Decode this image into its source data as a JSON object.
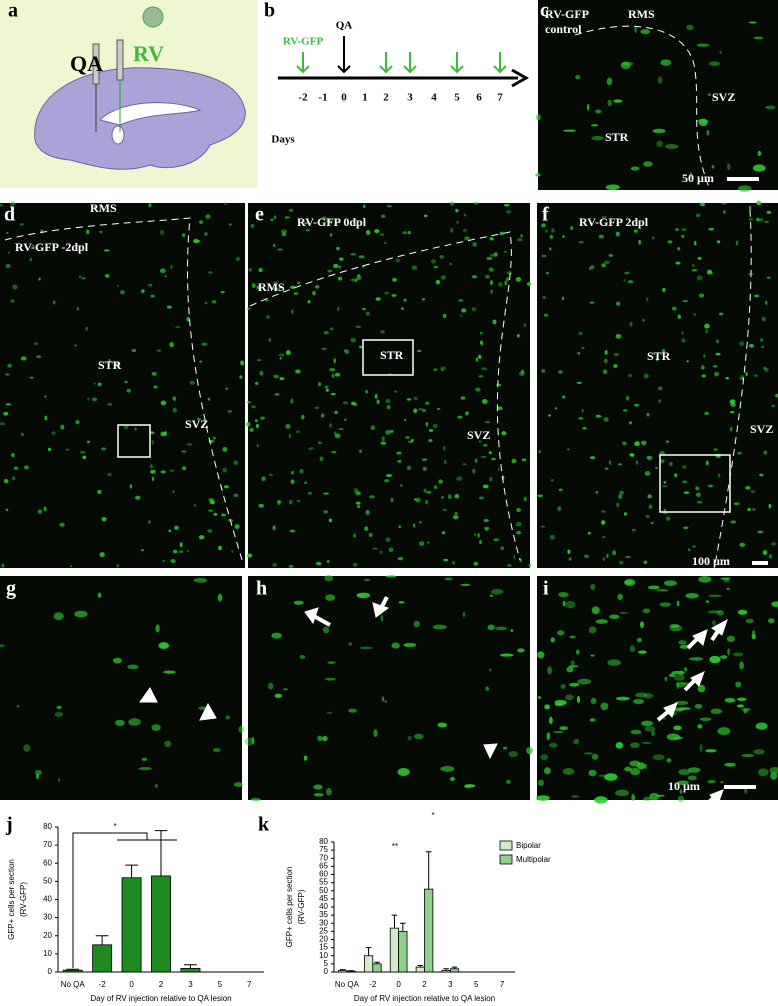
{
  "panels": [
    {
      "label": "a",
      "texts": [
        "QA",
        "RV"
      ]
    },
    {
      "label": "b",
      "texts": [
        "RV-GFP",
        "QA",
        "Days"
      ],
      "days": [
        -2,
        -1,
        0,
        1,
        2,
        3,
        4,
        5,
        6,
        7
      ]
    },
    {
      "label": "c",
      "texts": [
        "RV-GFP",
        "control",
        "RMS",
        "SVZ",
        "STR",
        "50 µm"
      ]
    },
    {
      "label": "d",
      "texts": [
        "RMS",
        "RV-GFP -2dpl",
        "STR",
        "SVZ"
      ]
    },
    {
      "label": "e",
      "texts": [
        "RV-GFP 0dpl",
        "RMS",
        "STR",
        "SVZ"
      ]
    },
    {
      "label": "f",
      "texts": [
        "RV-GFP 2dpl",
        "STR",
        "SVZ",
        "100 µm"
      ]
    },
    {
      "label": "g"
    },
    {
      "label": "h"
    },
    {
      "label": "i",
      "texts": [
        "10 µm"
      ]
    },
    {
      "label": "j"
    },
    {
      "label": "k"
    }
  ],
  "chart_data": [
    {
      "type": "bar",
      "y_label": [
        "GFP+ cells per section",
        "(RV-GFP)"
      ],
      "x_label": "Day of RV injection relative to QA lesion",
      "categories": [
        "No QA",
        "-2",
        "0",
        "2",
        "3",
        "5",
        "7"
      ],
      "series": [
        {
          "color": "#1f8a1f",
          "values": [
            1,
            15,
            52,
            53,
            2,
            0,
            0
          ],
          "errors": [
            0.5,
            5,
            7,
            25,
            2,
            0,
            0
          ]
        }
      ],
      "ylim": [
        0,
        80
      ],
      "yticks": [
        0,
        10,
        20,
        30,
        40,
        50,
        60,
        70,
        80
      ],
      "annotations": [
        "*"
      ]
    },
    {
      "type": "bar",
      "y_label": [
        "GFP+ cells per section",
        "(RV-GFP)"
      ],
      "x_label": "Day of RV injection relative to QA lesion",
      "categories": [
        "No QA",
        "-2",
        "0",
        "2",
        "3",
        "5",
        "7"
      ],
      "series": [
        {
          "name": "Bipolar",
          "color": "#d3ecc8",
          "values": [
            1,
            10,
            27,
            3,
            1,
            0,
            0
          ],
          "errors": [
            0.5,
            5,
            8,
            1,
            1,
            0,
            0
          ]
        },
        {
          "name": "Multipolar",
          "color": "#8fd08a",
          "values": [
            0.5,
            5,
            25,
            51,
            2,
            0,
            0
          ],
          "errors": [
            0.3,
            1,
            5,
            23,
            1,
            0,
            0
          ]
        }
      ],
      "ylim": [
        0,
        80
      ],
      "yticks": [
        0,
        5,
        10,
        15,
        20,
        25,
        30,
        35,
        40,
        45,
        50,
        55,
        60,
        65,
        70,
        75,
        80
      ],
      "legend": "top-right",
      "annotations": [
        "**",
        "*"
      ]
    }
  ]
}
